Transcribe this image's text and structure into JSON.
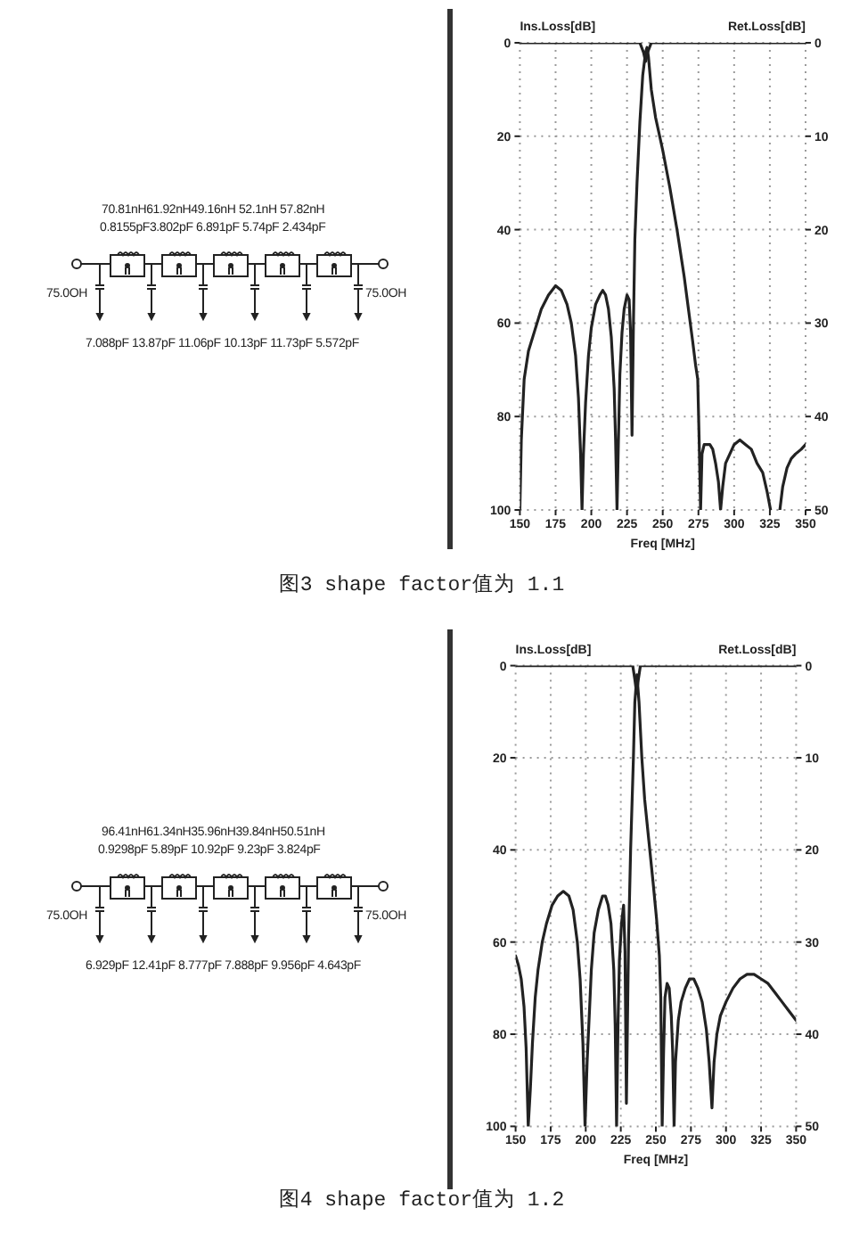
{
  "chart_data": [
    {
      "type": "line",
      "xlabel": "Freq [MHz]",
      "ylabel": "Ins.Loss[dB]",
      "y2label": "Ret.Loss[dB]",
      "xlim": [
        150,
        350
      ],
      "xticks": [
        150,
        175,
        200,
        225,
        250,
        275,
        300,
        325,
        350
      ],
      "ylim": [
        100,
        0
      ],
      "yticks": [
        0,
        20,
        40,
        60,
        80,
        100
      ],
      "y2lim": [
        50,
        0
      ],
      "y2ticks": [
        0,
        10,
        20,
        30,
        40,
        50
      ],
      "grid": true,
      "annotations": [
        "图3 shape factor值为 1.1",
        "70.81nH61.92nH49.16nH 52.1nH 57.82nH",
        "0.8155pF3.802pF 6.891pF 5.74pF 2.434pF",
        "75.0OH",
        "75.0OH",
        "7.088pF 13.87pF 11.06pF 10.13pF 11.73pF 5.572pF"
      ],
      "series": [
        {
          "color": "#222222",
          "x": [
            150,
            151,
            153,
            156,
            160,
            165,
            170,
            175,
            179,
            183,
            186,
            189,
            191,
            192.5,
            193.5,
            194.5,
            196,
            198,
            200,
            203,
            206,
            208,
            210,
            212,
            214,
            216,
            217,
            218,
            219,
            220,
            221.5,
            223,
            225,
            226.5,
            227.5,
            228.5,
            229.5,
            230.5,
            232,
            234,
            236,
            238,
            239,
            240,
            242,
            245,
            250,
            255,
            260,
            265,
            268,
            271,
            273,
            274.5,
            275.5,
            276.5,
            277.5,
            279,
            281,
            283,
            285,
            287,
            289,
            290.5,
            292,
            294,
            297,
            300,
            304,
            308,
            312,
            316,
            320,
            323,
            325.5,
            329,
            332,
            334,
            337,
            340,
            343,
            347,
            350
          ],
          "values": [
            100,
            85,
            72,
            66,
            62,
            57,
            54,
            52,
            53,
            56,
            60,
            67,
            76,
            88,
            100,
            88,
            77,
            67,
            61,
            56,
            54,
            53,
            54,
            57,
            63,
            74,
            85,
            100,
            85,
            71,
            62,
            57,
            54,
            55,
            62,
            84,
            60,
            42,
            30,
            17,
            7,
            2,
            1,
            3,
            10,
            16,
            23,
            31,
            40,
            50,
            57,
            64,
            69,
            72,
            85,
            100,
            88,
            86,
            86,
            86,
            87,
            90,
            94,
            100,
            95,
            90,
            88,
            86,
            85,
            86,
            87,
            90,
            92,
            96,
            100,
            null,
            100,
            95,
            91,
            89,
            88,
            87,
            86
          ]
        },
        {
          "color": "#222222",
          "axis": "y2",
          "x": [
            150,
            234,
            236.5,
            238,
            239.5,
            242,
            350
          ],
          "values": [
            0,
            0,
            1,
            2,
            1,
            0,
            0
          ]
        }
      ]
    },
    {
      "type": "line",
      "xlabel": "Freq [MHz]",
      "ylabel": "Ins.Loss[dB]",
      "y2label": "Ret.Loss[dB]",
      "xlim": [
        150,
        350
      ],
      "xticks": [
        150,
        175,
        200,
        225,
        250,
        275,
        300,
        325,
        350
      ],
      "ylim": [
        100,
        0
      ],
      "yticks": [
        0,
        20,
        40,
        60,
        80,
        100
      ],
      "y2lim": [
        50,
        0
      ],
      "y2ticks": [
        0,
        10,
        20,
        30,
        40,
        50
      ],
      "grid": true,
      "annotations": [
        "图4 shape factor值为 1.2",
        "96.41nH61.34nH35.96nH39.84nH50.51nH",
        "0.9298pF 5.89pF 10.92pF 9.23pF 3.824pF",
        "75.0OH",
        "75.0OH",
        "6.929pF 12.41pF 8.777pF 7.888pF 9.956pF 4.643pF"
      ],
      "series": [
        {
          "color": "#222222",
          "x": [
            150,
            152,
            154,
            156,
            157.5,
            159,
            160.5,
            162,
            164,
            166,
            169,
            172,
            176,
            180,
            184,
            188,
            191,
            194,
            196,
            198,
            199.5,
            201,
            202.5,
            204,
            206,
            209,
            212,
            214,
            216,
            218,
            220,
            221,
            222,
            223,
            224,
            225.5,
            227,
            228,
            229,
            230.5,
            232,
            234,
            235,
            236.5,
            238,
            240,
            242,
            245,
            248,
            250.5,
            252.5,
            253.5,
            254.5,
            255.5,
            256.5,
            258,
            259.5,
            261,
            262,
            263,
            264,
            266,
            268,
            271,
            274,
            277,
            280,
            283,
            286,
            288,
            290,
            291.5,
            293.5,
            296,
            300,
            305,
            310,
            315,
            320,
            325,
            330,
            335,
            340,
            345,
            350
          ],
          "values": [
            63,
            65,
            68,
            74,
            83,
            100,
            92,
            82,
            72,
            66,
            60,
            56,
            52,
            50,
            49,
            50,
            53,
            60,
            68,
            82,
            100,
            86,
            76,
            66,
            58,
            53,
            50,
            50,
            52,
            56,
            66,
            78,
            100,
            78,
            64,
            56,
            52,
            62,
            95,
            60,
            40,
            20,
            8,
            2,
            8,
            20,
            29,
            38,
            47,
            55,
            63,
            72,
            100,
            84,
            72,
            69,
            70,
            76,
            84,
            100,
            86,
            77,
            73,
            70,
            68,
            68,
            70,
            73,
            79,
            86,
            96,
            86,
            80,
            76,
            73,
            70,
            68,
            67,
            67,
            68,
            69,
            71,
            73,
            75,
            77
          ]
        },
        {
          "color": "#222222",
          "axis": "y2",
          "x": [
            150,
            233.5,
            235,
            236.3,
            237.5,
            239,
            350
          ],
          "values": [
            0,
            0,
            1.5,
            3,
            1.5,
            0,
            0
          ]
        }
      ]
    }
  ]
}
